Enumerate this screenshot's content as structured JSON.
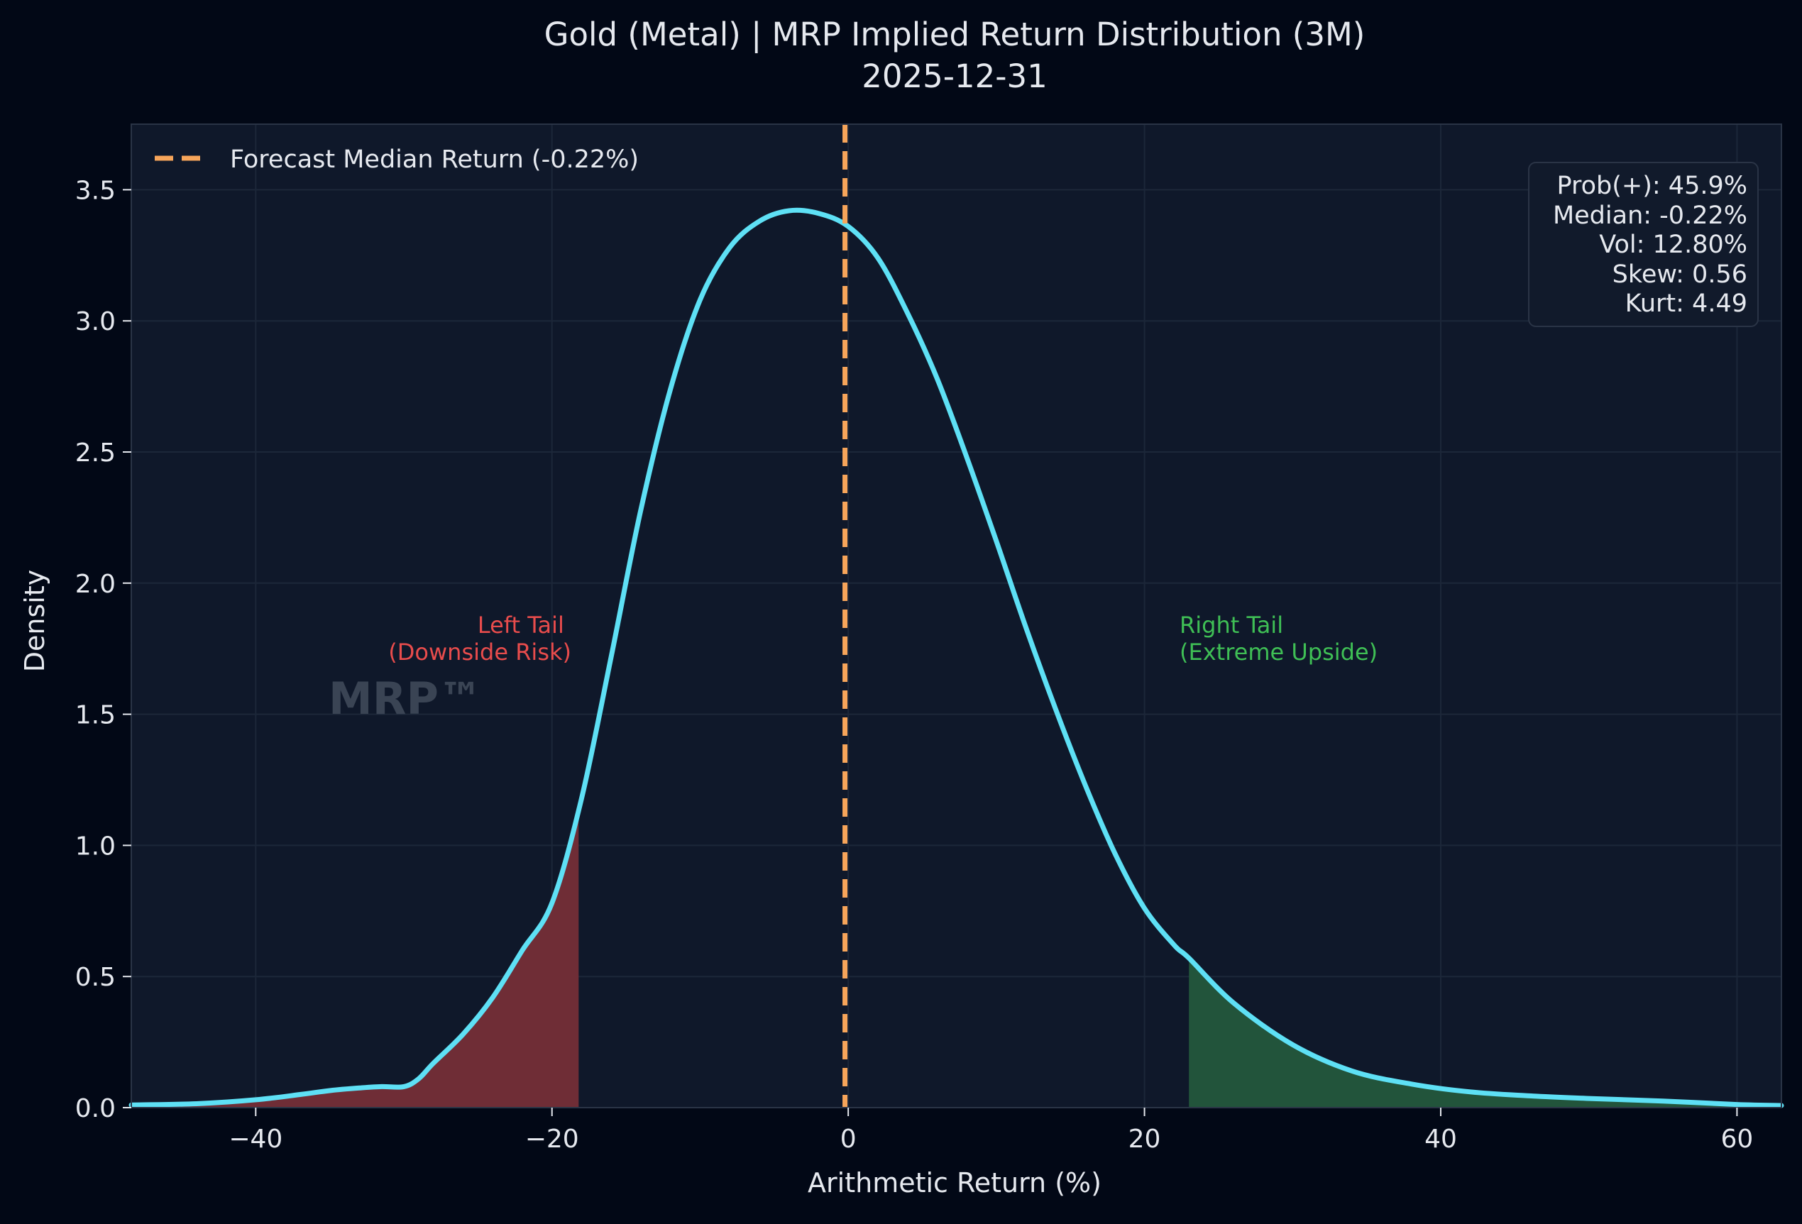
{
  "chart_data": {
    "type": "line",
    "title": "Gold (Metal) | MRP Implied Return Distribution (3M)",
    "subtitle": "2025-12-31",
    "xlabel": "Arithmetic Return (%)",
    "ylabel": "Density",
    "xlim": [
      -48.4,
      63
    ],
    "ylim": [
      0,
      3.75
    ],
    "x_ticks": [
      -40,
      -20,
      0,
      20,
      40,
      60
    ],
    "x_tick_labels": [
      "−40",
      "−20",
      "0",
      "20",
      "40",
      "60"
    ],
    "y_ticks": [
      0,
      0.5,
      1.0,
      1.5,
      2.0,
      2.5,
      3.0,
      3.5
    ],
    "y_tick_labels": [
      "0.0",
      "0.5",
      "1.0",
      "1.5",
      "2.0",
      "2.5",
      "3.0",
      "3.5"
    ],
    "grid": true,
    "series": [
      {
        "name": "",
        "color": "#5ee0f5",
        "x": [
          -48.4,
          -44,
          -40,
          -37,
          -35,
          -33,
          -31.5,
          -30,
          -29,
          -28,
          -26,
          -24,
          -22,
          -20,
          -18,
          -16,
          -14,
          -12,
          -10,
          -8,
          -6,
          -4,
          -2,
          0,
          2,
          4,
          6,
          8,
          10,
          12,
          14,
          16,
          18,
          20,
          22,
          23,
          26,
          30,
          34,
          38,
          42,
          46,
          50,
          55,
          60,
          63
        ],
        "y": [
          0.01,
          0.015,
          0.03,
          0.05,
          0.065,
          0.075,
          0.08,
          0.08,
          0.11,
          0.17,
          0.28,
          0.42,
          0.6,
          0.78,
          1.18,
          1.72,
          2.28,
          2.74,
          3.08,
          3.28,
          3.38,
          3.42,
          3.41,
          3.36,
          3.24,
          3.03,
          2.78,
          2.48,
          2.16,
          1.83,
          1.52,
          1.23,
          0.97,
          0.76,
          0.62,
          0.57,
          0.4,
          0.24,
          0.14,
          0.09,
          0.06,
          0.045,
          0.035,
          0.025,
          0.012,
          0.008
        ]
      }
    ],
    "shaded_regions": [
      {
        "from": -48.4,
        "to": -18.2,
        "color": "#6f2d36",
        "label": "Left Tail\n(Downside Risk)"
      },
      {
        "from": 23,
        "to": 63,
        "color": "#22543b",
        "label": "Right Tail\n(Extreme Upside)"
      }
    ],
    "annotations": {
      "left_tail_line1": "Left Tail",
      "left_tail_line2": "(Downside Risk)",
      "left_tail_color": "#e84c4c",
      "right_tail_line1": "Right Tail",
      "right_tail_line2": "(Extreme Upside)",
      "right_tail_color": "#3fbf55",
      "watermark": "MRP™"
    },
    "median_line": {
      "x": -0.22,
      "color": "#f7a55a",
      "label": "Forecast Median Return (-0.22%)"
    },
    "legend": {
      "position": "top-left",
      "entries": [
        "Forecast Median Return (-0.22%)"
      ]
    },
    "stats_box": {
      "position": "top-right",
      "lines": [
        "Prob(+): 45.9%",
        "Median: -0.22%",
        "Vol: 12.80%",
        "Skew: 0.56",
        "Kurt: 4.49"
      ]
    },
    "colors": {
      "figure_bg": "#020816",
      "axes_bg": "#0f182a",
      "grid": "#1c2739",
      "text": "#e6e9ef",
      "curve": "#5ee0f5"
    }
  }
}
